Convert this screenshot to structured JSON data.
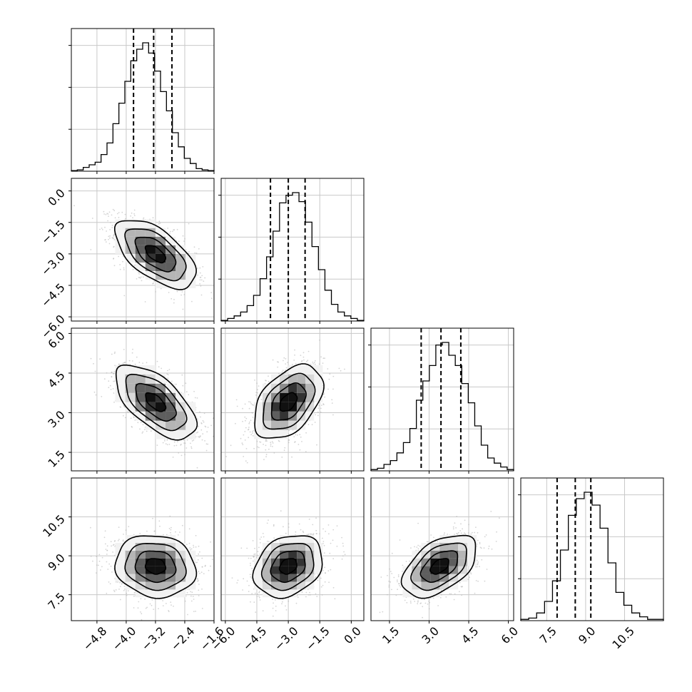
{
  "chart_data": {
    "type": "corner",
    "grid": true,
    "n_params": 4,
    "params": [
      {
        "range": [
          -5.5,
          -1.6
        ],
        "ticks": [
          "-4.8",
          "-4.0",
          "-3.2",
          "-2.4",
          "-1.6"
        ],
        "quantiles": [
          -3.8,
          -3.25,
          -2.75
        ],
        "hist": [
          0.005,
          0.01,
          0.03,
          0.05,
          0.07,
          0.13,
          0.22,
          0.37,
          0.53,
          0.7,
          0.86,
          0.95,
          1.0,
          0.92,
          0.78,
          0.62,
          0.47,
          0.3,
          0.19,
          0.1,
          0.06,
          0.02,
          0.01,
          0.005
        ]
      },
      {
        "range": [
          -6.2,
          0.6
        ],
        "ticks": [
          "-6.0",
          "-4.5",
          "-3.0",
          "-1.5",
          "0.0"
        ],
        "quantiles": [
          -3.85,
          -3.0,
          -2.2
        ],
        "hist": [
          0.005,
          0.02,
          0.04,
          0.07,
          0.12,
          0.2,
          0.33,
          0.5,
          0.7,
          0.92,
          0.98,
          1.0,
          0.93,
          0.77,
          0.58,
          0.4,
          0.24,
          0.13,
          0.07,
          0.04,
          0.02,
          0.005
        ]
      },
      {
        "range": [
          0.8,
          6.2
        ],
        "ticks": [
          "1.5",
          "3.0",
          "4.5",
          "6.0"
        ],
        "quantiles": [
          2.7,
          3.45,
          4.2
        ],
        "hist": [
          0.01,
          0.02,
          0.05,
          0.08,
          0.14,
          0.22,
          0.33,
          0.55,
          0.7,
          0.82,
          0.98,
          1.0,
          0.9,
          0.82,
          0.68,
          0.53,
          0.35,
          0.2,
          0.1,
          0.06,
          0.03,
          0.01
        ]
      },
      {
        "range": [
          6.5,
          12.0
        ],
        "ticks": [
          "7.5",
          "9.0",
          "10.5"
        ],
        "quantiles": [
          7.9,
          8.6,
          9.2
        ],
        "hist": [
          0.01,
          0.02,
          0.06,
          0.15,
          0.31,
          0.55,
          0.82,
          0.95,
          1.0,
          0.9,
          0.72,
          0.45,
          0.22,
          0.12,
          0.06,
          0.03,
          0.01,
          0.01
        ]
      }
    ],
    "pairs": [
      {
        "row": 1,
        "col": 0,
        "mean": [
          -3.2,
          -3.0
        ],
        "std": [
          0.55,
          0.82
        ],
        "rho": -0.6
      },
      {
        "row": 2,
        "col": 0,
        "mean": [
          -3.2,
          3.4
        ],
        "std": [
          0.55,
          0.7
        ],
        "rho": -0.62
      },
      {
        "row": 2,
        "col": 1,
        "mean": [
          -3.0,
          3.4
        ],
        "std": [
          0.82,
          0.7
        ],
        "rho": 0.45
      },
      {
        "row": 3,
        "col": 0,
        "mean": [
          -3.2,
          8.6
        ],
        "std": [
          0.55,
          0.6
        ],
        "rho": -0.1
      },
      {
        "row": 3,
        "col": 1,
        "mean": [
          -3.0,
          8.6
        ],
        "std": [
          0.82,
          0.6
        ],
        "rho": 0.25
      },
      {
        "row": 3,
        "col": 2,
        "mean": [
          3.4,
          8.6
        ],
        "std": [
          0.7,
          0.6
        ],
        "rho": 0.5
      }
    ],
    "colors": {
      "line": "#000000",
      "scatter": "#b8b8b8",
      "grid": "#c8c8c8",
      "density": [
        "#f2f2f2",
        "#d9d9d9",
        "#b5b5b5",
        "#8c8c8c",
        "#5e5e5e",
        "#333333",
        "#111111"
      ]
    }
  }
}
